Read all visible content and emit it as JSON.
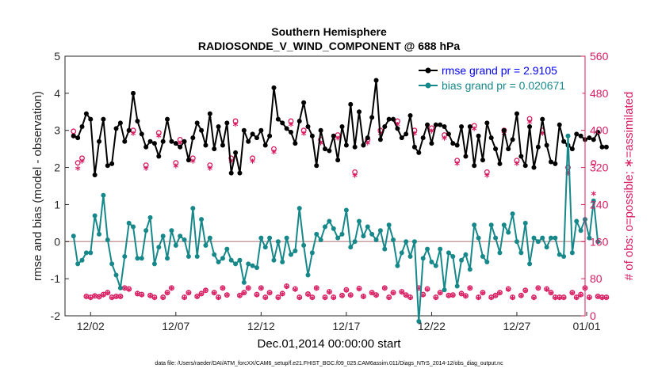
{
  "colors": {
    "rmse": "#000000",
    "bias": "#17888a",
    "obs": "#d81b60",
    "zero_line": "#c8a0a0",
    "axis": "#262626"
  },
  "chart_data": {
    "type": "line",
    "title": "Southern Hemisphere",
    "subtitle": "RADIOSONDE_V_WIND_COMPONENT @ 688 hPa",
    "xlabel": "Dec.01,2014 00:00:00 start",
    "ylabel": "rmse and bias (model - observation)",
    "y2label": "# of obs: o=possible; ∗=assimilated",
    "footnote": "data file: /Users/raeder/DAI/ATM_forcXX/CAM6_setup/f.e21.FHIST_BGC.f09_025.CAM6assim.011/Diags_NTrS_2014-12/obs_diag_output.nc",
    "xlim": [
      0.5,
      31.0
    ],
    "ylim": [
      -2,
      5
    ],
    "y2lim": [
      0,
      560
    ],
    "x_ticks": [
      {
        "x": 2,
        "label": "12/02"
      },
      {
        "x": 7,
        "label": "12/07"
      },
      {
        "x": 12,
        "label": "12/12"
      },
      {
        "x": 17,
        "label": "12/17"
      },
      {
        "x": 22,
        "label": "12/22"
      },
      {
        "x": 27,
        "label": "12/27"
      },
      {
        "x": 32,
        "label": "01/01"
      }
    ],
    "y_ticks": [
      {
        "v": -2,
        "label": "-2"
      },
      {
        "v": -1,
        "label": "-1"
      },
      {
        "v": 0,
        "label": "0"
      },
      {
        "v": 1,
        "label": "1"
      },
      {
        "v": 2,
        "label": "2"
      },
      {
        "v": 3,
        "label": "3"
      },
      {
        "v": 4,
        "label": "4"
      },
      {
        "v": 5,
        "label": "5"
      }
    ],
    "y2_ticks": [
      {
        "v": 0,
        "label": "0"
      },
      {
        "v": 80,
        "label": "80"
      },
      {
        "v": 160,
        "label": "160"
      },
      {
        "v": 240,
        "label": "240"
      },
      {
        "v": 320,
        "label": "320"
      },
      {
        "v": 400,
        "label": "400"
      },
      {
        "v": 480,
        "label": "480"
      },
      {
        "v": 560,
        "label": "560"
      }
    ],
    "legend": [
      {
        "name": "rmse grand pr = 2.9105",
        "series": "rmse"
      },
      {
        "name": "bias grand pr = 0.020671",
        "series": "bias"
      }
    ],
    "x_start": 1.0,
    "x_step": 0.25,
    "rmse": [
      2.85,
      2.8,
      3.1,
      3.45,
      3.3,
      1.8,
      2.7,
      3.3,
      2.05,
      2.1,
      3.05,
      3.2,
      2.7,
      3.0,
      4.0,
      3.25,
      2.9,
      2.55,
      2.7,
      2.65,
      2.3,
      2.7,
      3.3,
      2.7,
      2.65,
      2.55,
      2.7,
      2.2,
      2.8,
      3.2,
      3.0,
      2.6,
      3.45,
      2.5,
      3.1,
      2.6,
      3.2,
      1.85,
      2.4,
      1.85,
      3.0,
      2.7,
      2.9,
      2.8,
      3.0,
      2.6,
      2.85,
      4.15,
      3.3,
      3.2,
      3.05,
      2.95,
      2.65,
      3.25,
      3.75,
      3.1,
      2.85,
      2.05,
      3.0,
      2.5,
      2.45,
      2.85,
      2.2,
      3.1,
      2.6,
      3.7,
      2.55,
      3.5,
      2.6,
      2.8,
      3.35,
      4.35,
      2.75,
      3.1,
      3.3,
      3.3,
      3.05,
      2.8,
      2.9,
      3.4,
      2.55,
      2.4,
      2.8,
      3.15,
      2.65,
      3.15,
      3.15,
      3.1,
      2.9,
      2.65,
      2.6,
      3.1,
      2.3,
      3.1,
      2.05,
      2.85,
      2.2,
      3.2,
      2.8,
      2.5,
      2.1,
      3.0,
      2.5,
      2.75,
      3.45,
      2.3,
      2.05,
      3.1,
      2.0,
      2.55,
      3.3,
      2.6,
      2.15,
      2.1,
      3.15,
      2.7,
      2.6,
      2.5,
      2.9,
      2.85,
      2.75,
      2.8,
      2.75,
      2.95,
      2.55,
      2.55
    ],
    "bias": [
      0.15,
      -0.6,
      -0.5,
      -0.3,
      -0.3,
      0.7,
      0.2,
      1.25,
      0.05,
      -0.6,
      -0.9,
      -1.25,
      -0.4,
      0.5,
      0.4,
      -0.45,
      -0.45,
      0.3,
      0.65,
      -0.6,
      -0.15,
      0.15,
      -0.45,
      0.3,
      -0.1,
      0.15,
      0.05,
      -0.4,
      0.9,
      -0.4,
      0.6,
      -0.1,
      0.1,
      -0.35,
      -0.55,
      -0.45,
      -0.2,
      -0.5,
      -0.6,
      -0.5,
      -1.1,
      -0.6,
      -0.65,
      -0.7,
      0.1,
      -0.15,
      0.1,
      -0.5,
      0.0,
      -0.55,
      0.1,
      -0.35,
      -0.25,
      0.9,
      -0.1,
      -0.9,
      -0.3,
      0.2,
      0.05,
      0.4,
      0.55,
      0.35,
      0.1,
      0.2,
      0.85,
      -0.15,
      0.0,
      0.55,
      0.15,
      0.4,
      0.2,
      0.05,
      0.3,
      -0.2,
      0.45,
      0.05,
      -0.65,
      -0.3,
      0.0,
      -0.4,
      0.0,
      -2.15,
      -0.45,
      -0.2,
      -0.55,
      -0.65,
      -0.2,
      -1.3,
      -0.3,
      -0.4,
      -1.2,
      -0.5,
      -0.35,
      -0.75,
      0.45,
      0.1,
      -0.4,
      -0.55,
      0.45,
      0.1,
      -0.3,
      0.45,
      0.25,
      0.75,
      0.0,
      -0.3,
      0.5,
      -0.6,
      0.1,
      0.0,
      0.1,
      -0.15,
      0.1,
      0.1,
      -0.35,
      -0.4,
      2.85,
      -0.3,
      0.55,
      0.3,
      0.6,
      0.1,
      1.1,
      0.0
    ],
    "obs_possible": [
      398,
      330,
      340,
      42,
      40,
      43,
      41,
      46,
      50,
      40,
      42,
      42,
      60,
      58,
      400,
      48,
      46,
      325,
      44,
      40,
      395,
      40,
      50,
      60,
      330,
      380,
      40,
      50,
      340,
      42,
      48,
      55,
      325,
      50,
      40,
      60,
      45,
      340,
      420,
      44,
      50,
      60,
      340,
      46,
      60,
      40,
      50,
      360,
      40,
      48,
      64,
      420,
      58,
      40,
      400,
      47,
      40,
      60,
      380,
      40,
      52,
      40,
      390,
      44,
      56,
      45,
      310,
      59,
      42,
      380,
      50,
      45,
      400,
      60,
      40,
      50,
      420,
      52,
      45,
      40,
      400,
      60,
      46,
      58,
      405,
      40,
      50,
      390,
      44,
      45,
      335,
      48,
      43,
      60,
      410,
      40,
      50,
      310,
      40,
      44,
      50,
      400,
      58,
      40,
      335,
      44,
      55,
      425,
      40,
      60,
      400,
      58,
      50,
      40,
      40,
      40,
      320,
      50,
      40,
      46,
      60,
      40,
      330,
      42,
      40,
      40
    ],
    "obs_assimilated": [
      385,
      315,
      330,
      38,
      36,
      40,
      38,
      42,
      46,
      36,
      38,
      38,
      56,
      54,
      390,
      44,
      42,
      315,
      40,
      36,
      385,
      36,
      46,
      56,
      320,
      370,
      36,
      46,
      330,
      38,
      44,
      52,
      315,
      46,
      36,
      56,
      42,
      330,
      410,
      40,
      46,
      56,
      330,
      42,
      56,
      36,
      46,
      350,
      36,
      44,
      60,
      410,
      54,
      36,
      390,
      43,
      36,
      56,
      370,
      36,
      48,
      36,
      380,
      40,
      52,
      41,
      300,
      55,
      38,
      370,
      46,
      41,
      390,
      56,
      36,
      46,
      410,
      48,
      41,
      36,
      390,
      56,
      42,
      54,
      395,
      36,
      46,
      380,
      40,
      41,
      325,
      44,
      39,
      56,
      400,
      36,
      46,
      300,
      36,
      40,
      46,
      390,
      54,
      36,
      325,
      40,
      51,
      415,
      36,
      56,
      390,
      54,
      46,
      36,
      36,
      36,
      305,
      46,
      36,
      42,
      56,
      36,
      260,
      38,
      36,
      36
    ]
  }
}
